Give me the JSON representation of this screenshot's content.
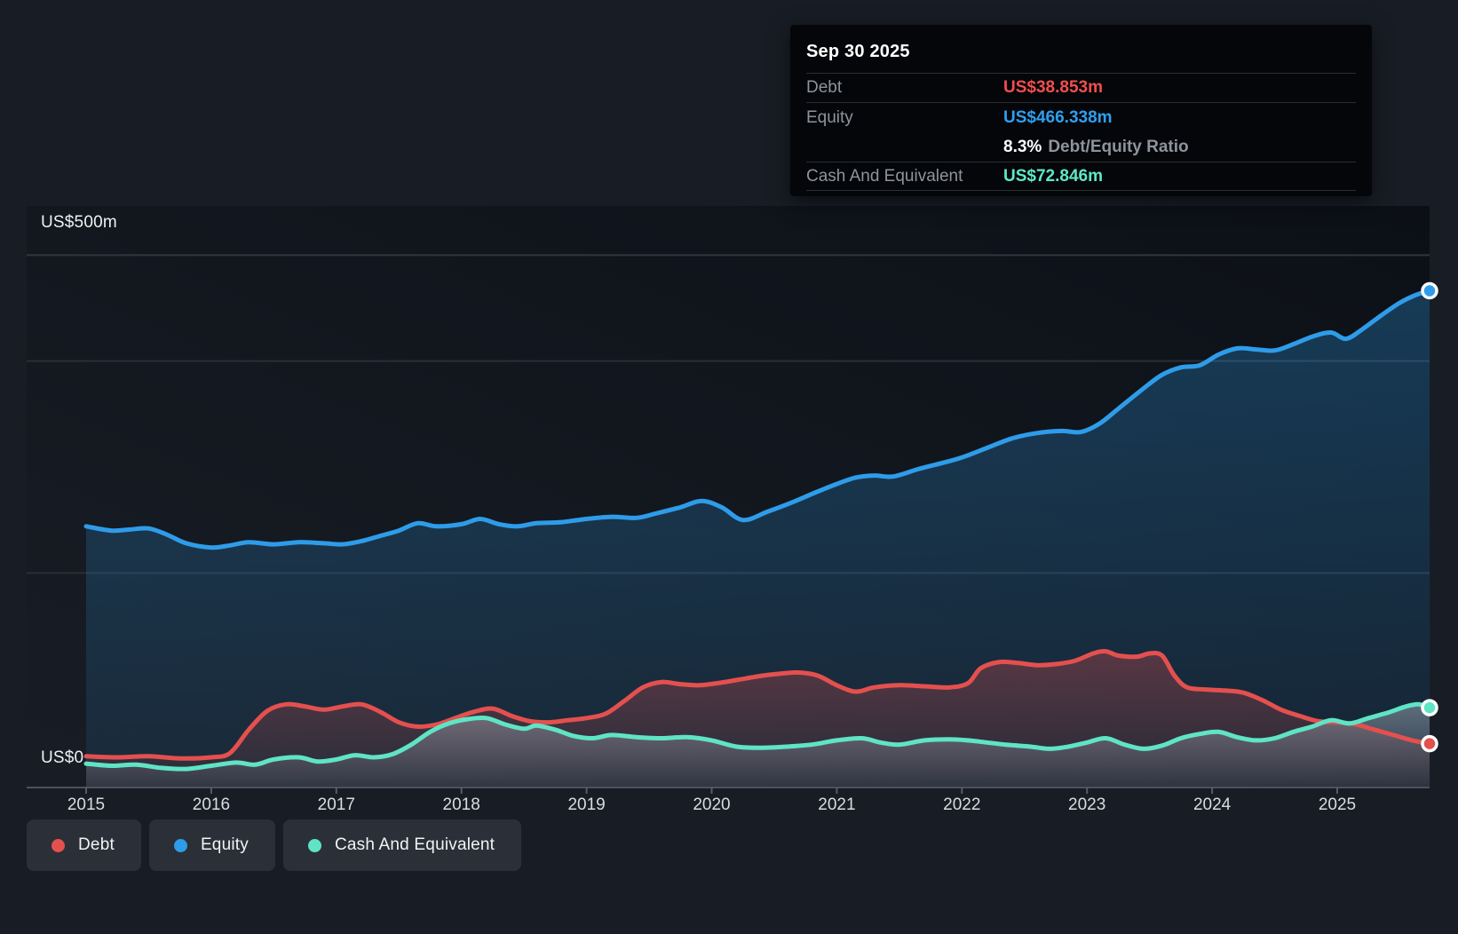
{
  "axis": {
    "y_top_label": "US$500m",
    "y_zero_label": "US$0",
    "years": [
      "2015",
      "2016",
      "2017",
      "2018",
      "2019",
      "2020",
      "2021",
      "2022",
      "2023",
      "2024",
      "2025"
    ]
  },
  "tooltip": {
    "date": "Sep 30 2025",
    "debt_label": "Debt",
    "debt_value": "US$38.853m",
    "equity_label": "Equity",
    "equity_value": "US$466.338m",
    "ratio_value": "8.3%",
    "ratio_label": "Debt/Equity Ratio",
    "cash_label": "Cash And Equivalent",
    "cash_value": "US$72.846m"
  },
  "legend": [
    {
      "label": "Debt",
      "color": "#e4504e"
    },
    {
      "label": "Equity",
      "color": "#2e9ce9"
    },
    {
      "label": "Cash And Equivalent",
      "color": "#5fe4c5"
    }
  ],
  "colors": {
    "debt": "#e4504e",
    "equity": "#2e9ce9",
    "cash": "#5fe4c5",
    "debt_value_text": "#f14f4c",
    "equity_value_text": "#2f9fef",
    "cash_value_text": "#5fe8c7"
  },
  "chart_data": {
    "type": "area",
    "title": "",
    "xlabel": "",
    "ylabel": "US$m",
    "x_range": [
      2015.0,
      2025.75
    ],
    "ylim": [
      0,
      500
    ],
    "y_gridline_values": [
      500,
      400,
      200,
      0
    ],
    "x_tick_years": [
      2015,
      2016,
      2017,
      2018,
      2019,
      2020,
      2021,
      2022,
      2023,
      2024,
      2025
    ],
    "latest_point_date": "Sep 30 2025",
    "series": [
      {
        "name": "Equity",
        "color": "#2e9ce9",
        "latest_value_musd": 466.338,
        "points": [
          [
            2015.0,
            244
          ],
          [
            2015.2,
            240
          ],
          [
            2015.35,
            241
          ],
          [
            2015.5,
            242
          ],
          [
            2015.65,
            236
          ],
          [
            2015.8,
            228
          ],
          [
            2016.0,
            224
          ],
          [
            2016.15,
            226
          ],
          [
            2016.3,
            229
          ],
          [
            2016.5,
            227
          ],
          [
            2016.7,
            229
          ],
          [
            2016.9,
            228
          ],
          [
            2017.05,
            227
          ],
          [
            2017.2,
            230
          ],
          [
            2017.35,
            235
          ],
          [
            2017.5,
            240
          ],
          [
            2017.65,
            247
          ],
          [
            2017.8,
            244
          ],
          [
            2018.0,
            246
          ],
          [
            2018.15,
            251
          ],
          [
            2018.3,
            246
          ],
          [
            2018.45,
            244
          ],
          [
            2018.6,
            247
          ],
          [
            2018.8,
            248
          ],
          [
            2019.0,
            251
          ],
          [
            2019.2,
            253
          ],
          [
            2019.4,
            252
          ],
          [
            2019.55,
            256
          ],
          [
            2019.75,
            262
          ],
          [
            2019.92,
            268
          ],
          [
            2020.08,
            262
          ],
          [
            2020.25,
            250
          ],
          [
            2020.45,
            258
          ],
          [
            2020.65,
            267
          ],
          [
            2020.85,
            277
          ],
          [
            2021.0,
            284
          ],
          [
            2021.15,
            290
          ],
          [
            2021.3,
            292
          ],
          [
            2021.45,
            291
          ],
          [
            2021.65,
            298
          ],
          [
            2021.85,
            304
          ],
          [
            2022.0,
            309
          ],
          [
            2022.2,
            318
          ],
          [
            2022.4,
            327
          ],
          [
            2022.6,
            332
          ],
          [
            2022.8,
            334
          ],
          [
            2022.95,
            333
          ],
          [
            2023.1,
            341
          ],
          [
            2023.25,
            355
          ],
          [
            2023.45,
            374
          ],
          [
            2023.6,
            387
          ],
          [
            2023.75,
            394
          ],
          [
            2023.9,
            396
          ],
          [
            2024.05,
            406
          ],
          [
            2024.2,
            412
          ],
          [
            2024.35,
            411
          ],
          [
            2024.5,
            410
          ],
          [
            2024.65,
            416
          ],
          [
            2024.8,
            423
          ],
          [
            2024.95,
            427
          ],
          [
            2025.07,
            421
          ],
          [
            2025.2,
            430
          ],
          [
            2025.35,
            443
          ],
          [
            2025.5,
            455
          ],
          [
            2025.62,
            462
          ],
          [
            2025.747,
            466.338
          ]
        ]
      },
      {
        "name": "Debt",
        "color": "#e4504e",
        "latest_value_musd": 38.853,
        "points": [
          [
            2015.0,
            27
          ],
          [
            2015.25,
            26
          ],
          [
            2015.5,
            27
          ],
          [
            2015.75,
            25
          ],
          [
            2016.0,
            26
          ],
          [
            2016.15,
            30
          ],
          [
            2016.3,
            52
          ],
          [
            2016.45,
            70
          ],
          [
            2016.6,
            76
          ],
          [
            2016.75,
            74
          ],
          [
            2016.9,
            71
          ],
          [
            2017.05,
            74
          ],
          [
            2017.2,
            76
          ],
          [
            2017.35,
            69
          ],
          [
            2017.5,
            59
          ],
          [
            2017.65,
            55
          ],
          [
            2017.8,
            57
          ],
          [
            2017.95,
            63
          ],
          [
            2018.1,
            69
          ],
          [
            2018.25,
            72
          ],
          [
            2018.4,
            65
          ],
          [
            2018.55,
            60
          ],
          [
            2018.7,
            59
          ],
          [
            2018.85,
            61
          ],
          [
            2019.0,
            63
          ],
          [
            2019.15,
            67
          ],
          [
            2019.3,
            79
          ],
          [
            2019.45,
            92
          ],
          [
            2019.6,
            97
          ],
          [
            2019.75,
            95
          ],
          [
            2019.9,
            94
          ],
          [
            2020.05,
            96
          ],
          [
            2020.2,
            99
          ],
          [
            2020.4,
            103
          ],
          [
            2020.55,
            105
          ],
          [
            2020.7,
            106
          ],
          [
            2020.85,
            103
          ],
          [
            2021.0,
            94
          ],
          [
            2021.15,
            88
          ],
          [
            2021.3,
            92
          ],
          [
            2021.5,
            94
          ],
          [
            2021.7,
            93
          ],
          [
            2021.9,
            92
          ],
          [
            2022.05,
            96
          ],
          [
            2022.15,
            110
          ],
          [
            2022.3,
            116
          ],
          [
            2022.45,
            115
          ],
          [
            2022.6,
            113
          ],
          [
            2022.75,
            114
          ],
          [
            2022.9,
            117
          ],
          [
            2023.05,
            124
          ],
          [
            2023.15,
            126
          ],
          [
            2023.25,
            122
          ],
          [
            2023.4,
            121
          ],
          [
            2023.5,
            124
          ],
          [
            2023.6,
            122
          ],
          [
            2023.7,
            103
          ],
          [
            2023.8,
            92
          ],
          [
            2023.95,
            90
          ],
          [
            2024.1,
            89
          ],
          [
            2024.25,
            87
          ],
          [
            2024.4,
            80
          ],
          [
            2024.55,
            71
          ],
          [
            2024.7,
            65
          ],
          [
            2024.85,
            60
          ],
          [
            2025.0,
            59
          ],
          [
            2025.15,
            57
          ],
          [
            2025.3,
            52
          ],
          [
            2025.45,
            47
          ],
          [
            2025.6,
            42
          ],
          [
            2025.747,
            38.853
          ]
        ]
      },
      {
        "name": "Cash And Equivalent",
        "color": "#5fe4c5",
        "latest_value_musd": 72.846,
        "points": [
          [
            2015.0,
            20
          ],
          [
            2015.2,
            18
          ],
          [
            2015.4,
            19
          ],
          [
            2015.6,
            16
          ],
          [
            2015.8,
            15
          ],
          [
            2016.0,
            18
          ],
          [
            2016.2,
            21
          ],
          [
            2016.35,
            19
          ],
          [
            2016.5,
            24
          ],
          [
            2016.7,
            26
          ],
          [
            2016.85,
            22
          ],
          [
            2017.0,
            24
          ],
          [
            2017.15,
            28
          ],
          [
            2017.3,
            26
          ],
          [
            2017.45,
            29
          ],
          [
            2017.6,
            38
          ],
          [
            2017.75,
            50
          ],
          [
            2017.9,
            58
          ],
          [
            2018.05,
            62
          ],
          [
            2018.2,
            63
          ],
          [
            2018.35,
            57
          ],
          [
            2018.5,
            53
          ],
          [
            2018.6,
            56
          ],
          [
            2018.75,
            52
          ],
          [
            2018.9,
            46
          ],
          [
            2019.05,
            44
          ],
          [
            2019.2,
            47
          ],
          [
            2019.4,
            45
          ],
          [
            2019.6,
            44
          ],
          [
            2019.8,
            45
          ],
          [
            2020.0,
            42
          ],
          [
            2020.2,
            36
          ],
          [
            2020.4,
            35
          ],
          [
            2020.6,
            36
          ],
          [
            2020.8,
            38
          ],
          [
            2021.0,
            42
          ],
          [
            2021.2,
            44
          ],
          [
            2021.35,
            40
          ],
          [
            2021.5,
            38
          ],
          [
            2021.7,
            42
          ],
          [
            2021.9,
            43
          ],
          [
            2022.05,
            42
          ],
          [
            2022.2,
            40
          ],
          [
            2022.35,
            38
          ],
          [
            2022.55,
            36
          ],
          [
            2022.7,
            34
          ],
          [
            2022.85,
            36
          ],
          [
            2023.0,
            40
          ],
          [
            2023.15,
            44
          ],
          [
            2023.3,
            38
          ],
          [
            2023.45,
            34
          ],
          [
            2023.6,
            37
          ],
          [
            2023.75,
            44
          ],
          [
            2023.9,
            48
          ],
          [
            2024.05,
            50
          ],
          [
            2024.2,
            45
          ],
          [
            2024.35,
            42
          ],
          [
            2024.5,
            44
          ],
          [
            2024.65,
            50
          ],
          [
            2024.8,
            55
          ],
          [
            2024.95,
            61
          ],
          [
            2025.1,
            58
          ],
          [
            2025.25,
            63
          ],
          [
            2025.4,
            68
          ],
          [
            2025.55,
            74
          ],
          [
            2025.65,
            76
          ],
          [
            2025.747,
            72.846
          ]
        ]
      }
    ]
  }
}
